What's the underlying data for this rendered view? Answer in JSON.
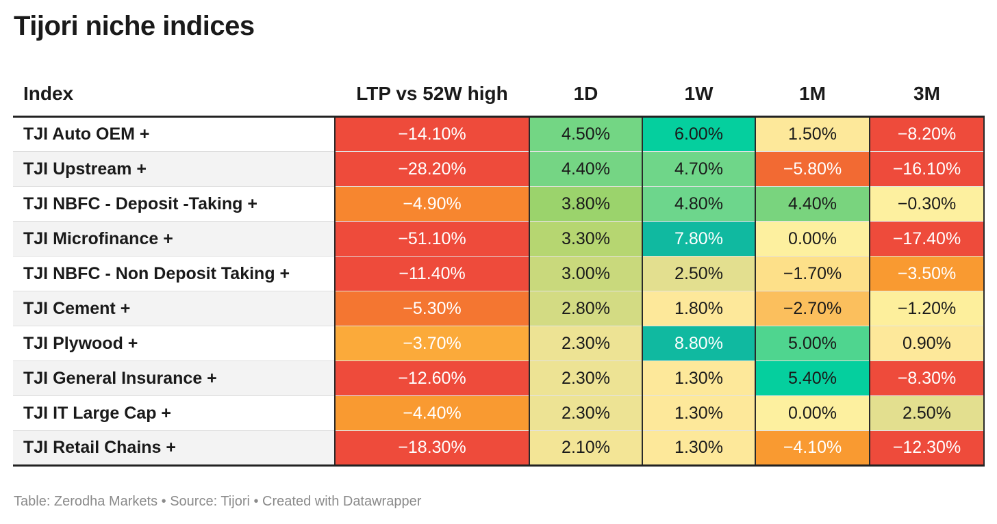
{
  "title": "Tijori niche indices",
  "footer": "Table: Zerodha Markets • Source: Tijori • Created with Datawrapper",
  "colors": {
    "strong_red": "#ee4b3b",
    "orange_red": "#f26a33",
    "orange": "#f7862f",
    "amber": "#f99a31",
    "light_orange": "#fbbf5d",
    "pale_yellow": "#fde89a",
    "olive_yellow": "#e3df8f",
    "light_green": "#c9d97c",
    "green": "#9bd36c",
    "mid_green": "#6dd68c",
    "teal": "#05cf9e",
    "dark_teal": "#10b9a0"
  },
  "chart_data": {
    "type": "table",
    "title": "Tijori niche indices",
    "columns": [
      "Index",
      "LTP vs 52W high",
      "1D",
      "1W",
      "1M",
      "3M"
    ],
    "rows": [
      {
        "name": "TJI Auto OEM +",
        "cells": [
          {
            "text": "−14.10%",
            "value": -14.1,
            "color": "#ee4b3b"
          },
          {
            "text": "4.50%",
            "value": 4.5,
            "color": "#73d684"
          },
          {
            "text": "6.00%",
            "value": 6.0,
            "color": "#05cf9e"
          },
          {
            "text": "1.50%",
            "value": 1.5,
            "color": "#fde89a"
          },
          {
            "text": "−8.20%",
            "value": -8.2,
            "color": "#ee4b3b"
          }
        ]
      },
      {
        "name": "TJI Upstream +",
        "cells": [
          {
            "text": "−28.20%",
            "value": -28.2,
            "color": "#ee4b3b"
          },
          {
            "text": "4.40%",
            "value": 4.4,
            "color": "#75d584"
          },
          {
            "text": "4.70%",
            "value": 4.7,
            "color": "#6fd689"
          },
          {
            "text": "−5.80%",
            "value": -5.8,
            "color": "#f26a33"
          },
          {
            "text": "−16.10%",
            "value": -16.1,
            "color": "#ee4b3b"
          }
        ]
      },
      {
        "name": "TJI NBFC - Deposit -Taking +",
        "cells": [
          {
            "text": "−4.90%",
            "value": -4.9,
            "color": "#f7862f"
          },
          {
            "text": "3.80%",
            "value": 3.8,
            "color": "#9bd36c"
          },
          {
            "text": "4.80%",
            "value": 4.8,
            "color": "#6dd68c"
          },
          {
            "text": "4.40%",
            "value": 4.4,
            "color": "#79d47e"
          },
          {
            "text": "−0.30%",
            "value": -0.3,
            "color": "#fdf09f"
          }
        ]
      },
      {
        "name": "TJI Microfinance +",
        "cells": [
          {
            "text": "−51.10%",
            "value": -51.1,
            "color": "#ee4b3b"
          },
          {
            "text": "3.30%",
            "value": 3.3,
            "color": "#b6d671"
          },
          {
            "text": "7.80%",
            "value": 7.8,
            "color": "#10b9a0"
          },
          {
            "text": "0.00%",
            "value": 0.0,
            "color": "#fdf09f"
          },
          {
            "text": "−17.40%",
            "value": -17.4,
            "color": "#ee4b3b"
          }
        ]
      },
      {
        "name": "TJI NBFC - Non Deposit Taking +",
        "cells": [
          {
            "text": "−11.40%",
            "value": -11.4,
            "color": "#ee4b3b"
          },
          {
            "text": "3.00%",
            "value": 3.0,
            "color": "#c9d97c"
          },
          {
            "text": "2.50%",
            "value": 2.5,
            "color": "#e3df8f"
          },
          {
            "text": "−1.70%",
            "value": -1.7,
            "color": "#fde089"
          },
          {
            "text": "−3.50%",
            "value": -3.5,
            "color": "#f99a31"
          }
        ]
      },
      {
        "name": "TJI Cement +",
        "cells": [
          {
            "text": "−5.30%",
            "value": -5.3,
            "color": "#f47631"
          },
          {
            "text": "2.80%",
            "value": 2.8,
            "color": "#d3db83"
          },
          {
            "text": "1.80%",
            "value": 1.8,
            "color": "#fde89a"
          },
          {
            "text": "−2.70%",
            "value": -2.7,
            "color": "#fbbf5d"
          },
          {
            "text": "−1.20%",
            "value": -1.2,
            "color": "#fdef9c"
          }
        ]
      },
      {
        "name": "TJI Plywood +",
        "cells": [
          {
            "text": "−3.70%",
            "value": -3.7,
            "color": "#fbaa3a"
          },
          {
            "text": "2.30%",
            "value": 2.3,
            "color": "#ede394"
          },
          {
            "text": "8.80%",
            "value": 8.8,
            "color": "#10b9a0"
          },
          {
            "text": "5.00%",
            "value": 5.0,
            "color": "#4fd58f"
          },
          {
            "text": "0.90%",
            "value": 0.9,
            "color": "#fde89a"
          }
        ]
      },
      {
        "name": "TJI General Insurance +",
        "cells": [
          {
            "text": "−12.60%",
            "value": -12.6,
            "color": "#ee4b3b"
          },
          {
            "text": "2.30%",
            "value": 2.3,
            "color": "#ede394"
          },
          {
            "text": "1.30%",
            "value": 1.3,
            "color": "#fde89a"
          },
          {
            "text": "5.40%",
            "value": 5.4,
            "color": "#05cf9e"
          },
          {
            "text": "−8.30%",
            "value": -8.3,
            "color": "#ee4b3b"
          }
        ]
      },
      {
        "name": "TJI IT Large Cap +",
        "cells": [
          {
            "text": "−4.40%",
            "value": -4.4,
            "color": "#f99a31"
          },
          {
            "text": "2.30%",
            "value": 2.3,
            "color": "#ede394"
          },
          {
            "text": "1.30%",
            "value": 1.3,
            "color": "#fde89a"
          },
          {
            "text": "0.00%",
            "value": 0.0,
            "color": "#fdf09f"
          },
          {
            "text": "2.50%",
            "value": 2.5,
            "color": "#e3df8f"
          }
        ]
      },
      {
        "name": "TJI Retail Chains +",
        "cells": [
          {
            "text": "−18.30%",
            "value": -18.3,
            "color": "#ee4b3b"
          },
          {
            "text": "2.10%",
            "value": 2.1,
            "color": "#f3e596"
          },
          {
            "text": "1.30%",
            "value": 1.3,
            "color": "#fde89a"
          },
          {
            "text": "−4.10%",
            "value": -4.1,
            "color": "#f99a31"
          },
          {
            "text": "−12.30%",
            "value": -12.3,
            "color": "#ee4b3b"
          }
        ]
      }
    ]
  }
}
